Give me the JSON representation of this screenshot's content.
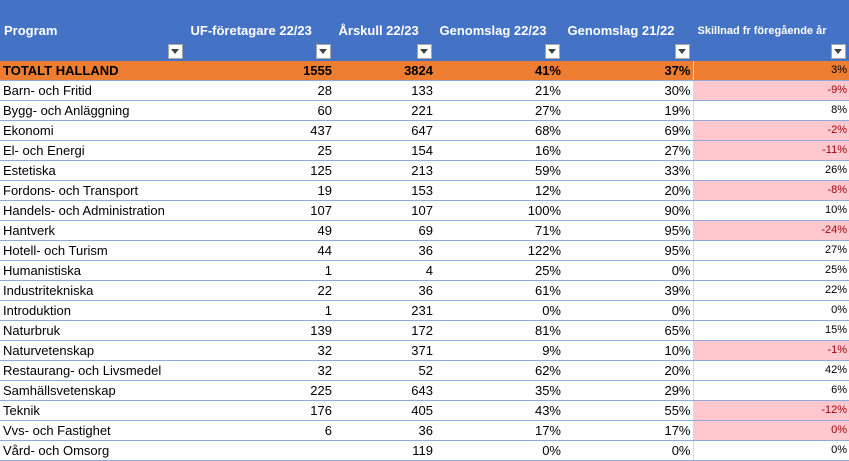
{
  "headers": {
    "program": "Program",
    "uf": "UF-företagare 22/23",
    "arskull": "Årskull 22/23",
    "genomslag2223": "Genomslag 22/23",
    "genomslag2122": "Genomslag 21/22",
    "skillnad": "Skillnad fr föregående år"
  },
  "total": {
    "program": "TOTALT HALLAND",
    "uf": "1555",
    "arskull": "3824",
    "g2223": "41%",
    "g2122": "37%",
    "diff": "3%"
  },
  "rows": [
    {
      "program": "Barn- och Fritid",
      "uf": "28",
      "arskull": "133",
      "g2223": "21%",
      "g2122": "30%",
      "diff": "-9%",
      "neg": true
    },
    {
      "program": "Bygg- och Anläggning",
      "uf": "60",
      "arskull": "221",
      "g2223": "27%",
      "g2122": "19%",
      "diff": "8%",
      "neg": false
    },
    {
      "program": "Ekonomi",
      "uf": "437",
      "arskull": "647",
      "g2223": "68%",
      "g2122": "69%",
      "diff": "-2%",
      "neg": true
    },
    {
      "program": "El- och Energi",
      "uf": "25",
      "arskull": "154",
      "g2223": "16%",
      "g2122": "27%",
      "diff": "-11%",
      "neg": true
    },
    {
      "program": "Estetiska",
      "uf": "125",
      "arskull": "213",
      "g2223": "59%",
      "g2122": "33%",
      "diff": "26%",
      "neg": false
    },
    {
      "program": "Fordons- och Transport",
      "uf": "19",
      "arskull": "153",
      "g2223": "12%",
      "g2122": "20%",
      "diff": "-8%",
      "neg": true
    },
    {
      "program": "Handels- och Administration",
      "uf": "107",
      "arskull": "107",
      "g2223": "100%",
      "g2122": "90%",
      "diff": "10%",
      "neg": false
    },
    {
      "program": "Hantverk",
      "uf": "49",
      "arskull": "69",
      "g2223": "71%",
      "g2122": "95%",
      "diff": "-24%",
      "neg": true
    },
    {
      "program": "Hotell- och Turism",
      "uf": "44",
      "arskull": "36",
      "g2223": "122%",
      "g2122": "95%",
      "diff": "27%",
      "neg": false
    },
    {
      "program": "Humanistiska",
      "uf": "1",
      "arskull": "4",
      "g2223": "25%",
      "g2122": "0%",
      "diff": "25%",
      "neg": false
    },
    {
      "program": "Industritekniska",
      "uf": "22",
      "arskull": "36",
      "g2223": "61%",
      "g2122": "39%",
      "diff": "22%",
      "neg": false
    },
    {
      "program": "Introduktion",
      "uf": "1",
      "arskull": "231",
      "g2223": "0%",
      "g2122": "0%",
      "diff": "0%",
      "neg": false
    },
    {
      "program": "Naturbruk",
      "uf": "139",
      "arskull": "172",
      "g2223": "81%",
      "g2122": "65%",
      "diff": "15%",
      "neg": false
    },
    {
      "program": "Naturvetenskap",
      "uf": "32",
      "arskull": "371",
      "g2223": "9%",
      "g2122": "10%",
      "diff": "-1%",
      "neg": true
    },
    {
      "program": "Restaurang- och Livsmedel",
      "uf": "32",
      "arskull": "52",
      "g2223": "62%",
      "g2122": "20%",
      "diff": "42%",
      "neg": false
    },
    {
      "program": "Samhällsvetenskap",
      "uf": "225",
      "arskull": "643",
      "g2223": "35%",
      "g2122": "29%",
      "diff": "6%",
      "neg": false
    },
    {
      "program": "Teknik",
      "uf": "176",
      "arskull": "405",
      "g2223": "43%",
      "g2122": "55%",
      "diff": "-12%",
      "neg": true
    },
    {
      "program": "Vvs- och Fastighet",
      "uf": "6",
      "arskull": "36",
      "g2223": "17%",
      "g2122": "17%",
      "diff": "0%",
      "neg": true
    },
    {
      "program": "Vård- och Omsorg",
      "uf": "",
      "arskull": "119",
      "g2223": "0%",
      "g2122": "0%",
      "diff": "0%",
      "neg": false
    }
  ],
  "colors": {
    "header": "#4472c4",
    "total": "#ed7d31",
    "negative_fill": "#ffc7ce",
    "negative_text": "#9c0006"
  },
  "icons": {
    "filter": "dropdown-arrow-icon"
  }
}
